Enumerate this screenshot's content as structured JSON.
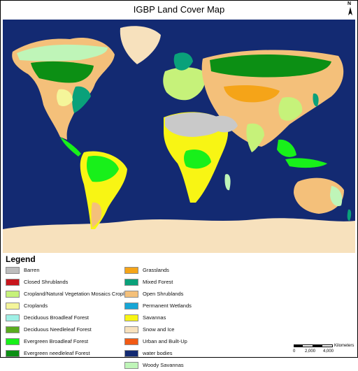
{
  "title": "IGBP Land Cover Map",
  "north_label": "N",
  "legend": {
    "heading": "Legend",
    "column1": [
      {
        "label": "Barren",
        "color": "#bdbdbd"
      },
      {
        "label": "Closed Shrublands",
        "color": "#c8161d"
      },
      {
        "label": "Cropland/Natural Vegetation Mosaics Croplands",
        "color": "#c6f27a"
      },
      {
        "label": "Croplands",
        "color": "#f4f59a"
      },
      {
        "label": "Deciduous Broadleaf Forest",
        "color": "#9ff0e6"
      },
      {
        "label": "Deciduous Needleleaf Forest",
        "color": "#5aab1f"
      },
      {
        "label": "Evergreen Broadleaf Forest",
        "color": "#18f01a"
      },
      {
        "label": "Evergreen needleleaf Forest",
        "color": "#0c8f14"
      }
    ],
    "column2": [
      {
        "label": "Grasslands",
        "color": "#f5a418"
      },
      {
        "label": "Mixed Forest",
        "color": "#0aa17a"
      },
      {
        "label": "Open Shrublands",
        "color": "#f4c07a"
      },
      {
        "label": "Permanent Wetlands",
        "color": "#17a6d6"
      },
      {
        "label": "Savannas",
        "color": "#f8f514"
      },
      {
        "label": "Snow and Ice",
        "color": "#f7e1bd"
      },
      {
        "label": "Urban and Built-Up",
        "color": "#f25a14"
      },
      {
        "label": "water bodies",
        "color": "#132a72"
      },
      {
        "label": "Woody Savannas",
        "color": "#bff5b8"
      }
    ]
  },
  "scale": {
    "ticks": [
      "0",
      "2,000",
      "4,000"
    ],
    "unit": "Kilometers"
  },
  "colors": {
    "ocean": "#132a72",
    "snow": "#f7e1bd",
    "barren": "#c9c9c9",
    "open_shrub": "#f4c07a",
    "grass": "#f5a418",
    "mixed": "#0aa17a",
    "evergreen_needle": "#0c8f14",
    "evergreen_broad": "#18f01a",
    "savanna": "#f8f514",
    "woody_savanna": "#bff5b8",
    "cropland": "#f4f59a",
    "crop_mosaic": "#c6f27a",
    "closed_shrub": "#c8161d",
    "wetland": "#17a6d6"
  }
}
